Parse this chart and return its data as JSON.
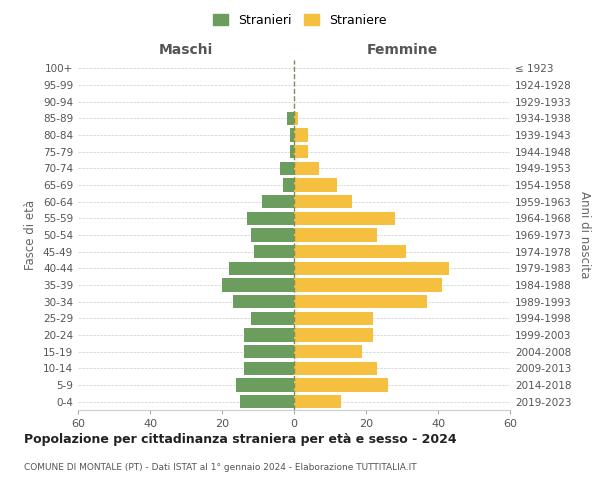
{
  "age_groups": [
    "0-4",
    "5-9",
    "10-14",
    "15-19",
    "20-24",
    "25-29",
    "30-34",
    "35-39",
    "40-44",
    "45-49",
    "50-54",
    "55-59",
    "60-64",
    "65-69",
    "70-74",
    "75-79",
    "80-84",
    "85-89",
    "90-94",
    "95-99",
    "100+"
  ],
  "birth_years": [
    "2019-2023",
    "2014-2018",
    "2009-2013",
    "2004-2008",
    "1999-2003",
    "1994-1998",
    "1989-1993",
    "1984-1988",
    "1979-1983",
    "1974-1978",
    "1969-1973",
    "1964-1968",
    "1959-1963",
    "1954-1958",
    "1949-1953",
    "1944-1948",
    "1939-1943",
    "1934-1938",
    "1929-1933",
    "1924-1928",
    "≤ 1923"
  ],
  "males": [
    15,
    16,
    14,
    14,
    14,
    12,
    17,
    20,
    18,
    11,
    12,
    13,
    9,
    3,
    4,
    1,
    1,
    2,
    0,
    0,
    0
  ],
  "females": [
    13,
    26,
    23,
    19,
    22,
    22,
    37,
    41,
    43,
    31,
    23,
    28,
    16,
    12,
    7,
    4,
    4,
    1,
    0,
    0,
    0
  ],
  "male_color": "#6b9e5e",
  "female_color": "#f5c040",
  "background_color": "#ffffff",
  "grid_color": "#cccccc",
  "dashed_line_color": "#888855",
  "title": "Popolazione per cittadinanza straniera per età e sesso - 2024",
  "subtitle": "COMUNE DI MONTALE (PT) - Dati ISTAT al 1° gennaio 2024 - Elaborazione TUTTITALIA.IT",
  "xlabel_left": "Maschi",
  "xlabel_right": "Femmine",
  "ylabel_left": "Fasce di età",
  "ylabel_right": "Anni di nascita",
  "legend_male": "Stranieri",
  "legend_female": "Straniere",
  "xlim": 60,
  "bar_height": 0.8
}
